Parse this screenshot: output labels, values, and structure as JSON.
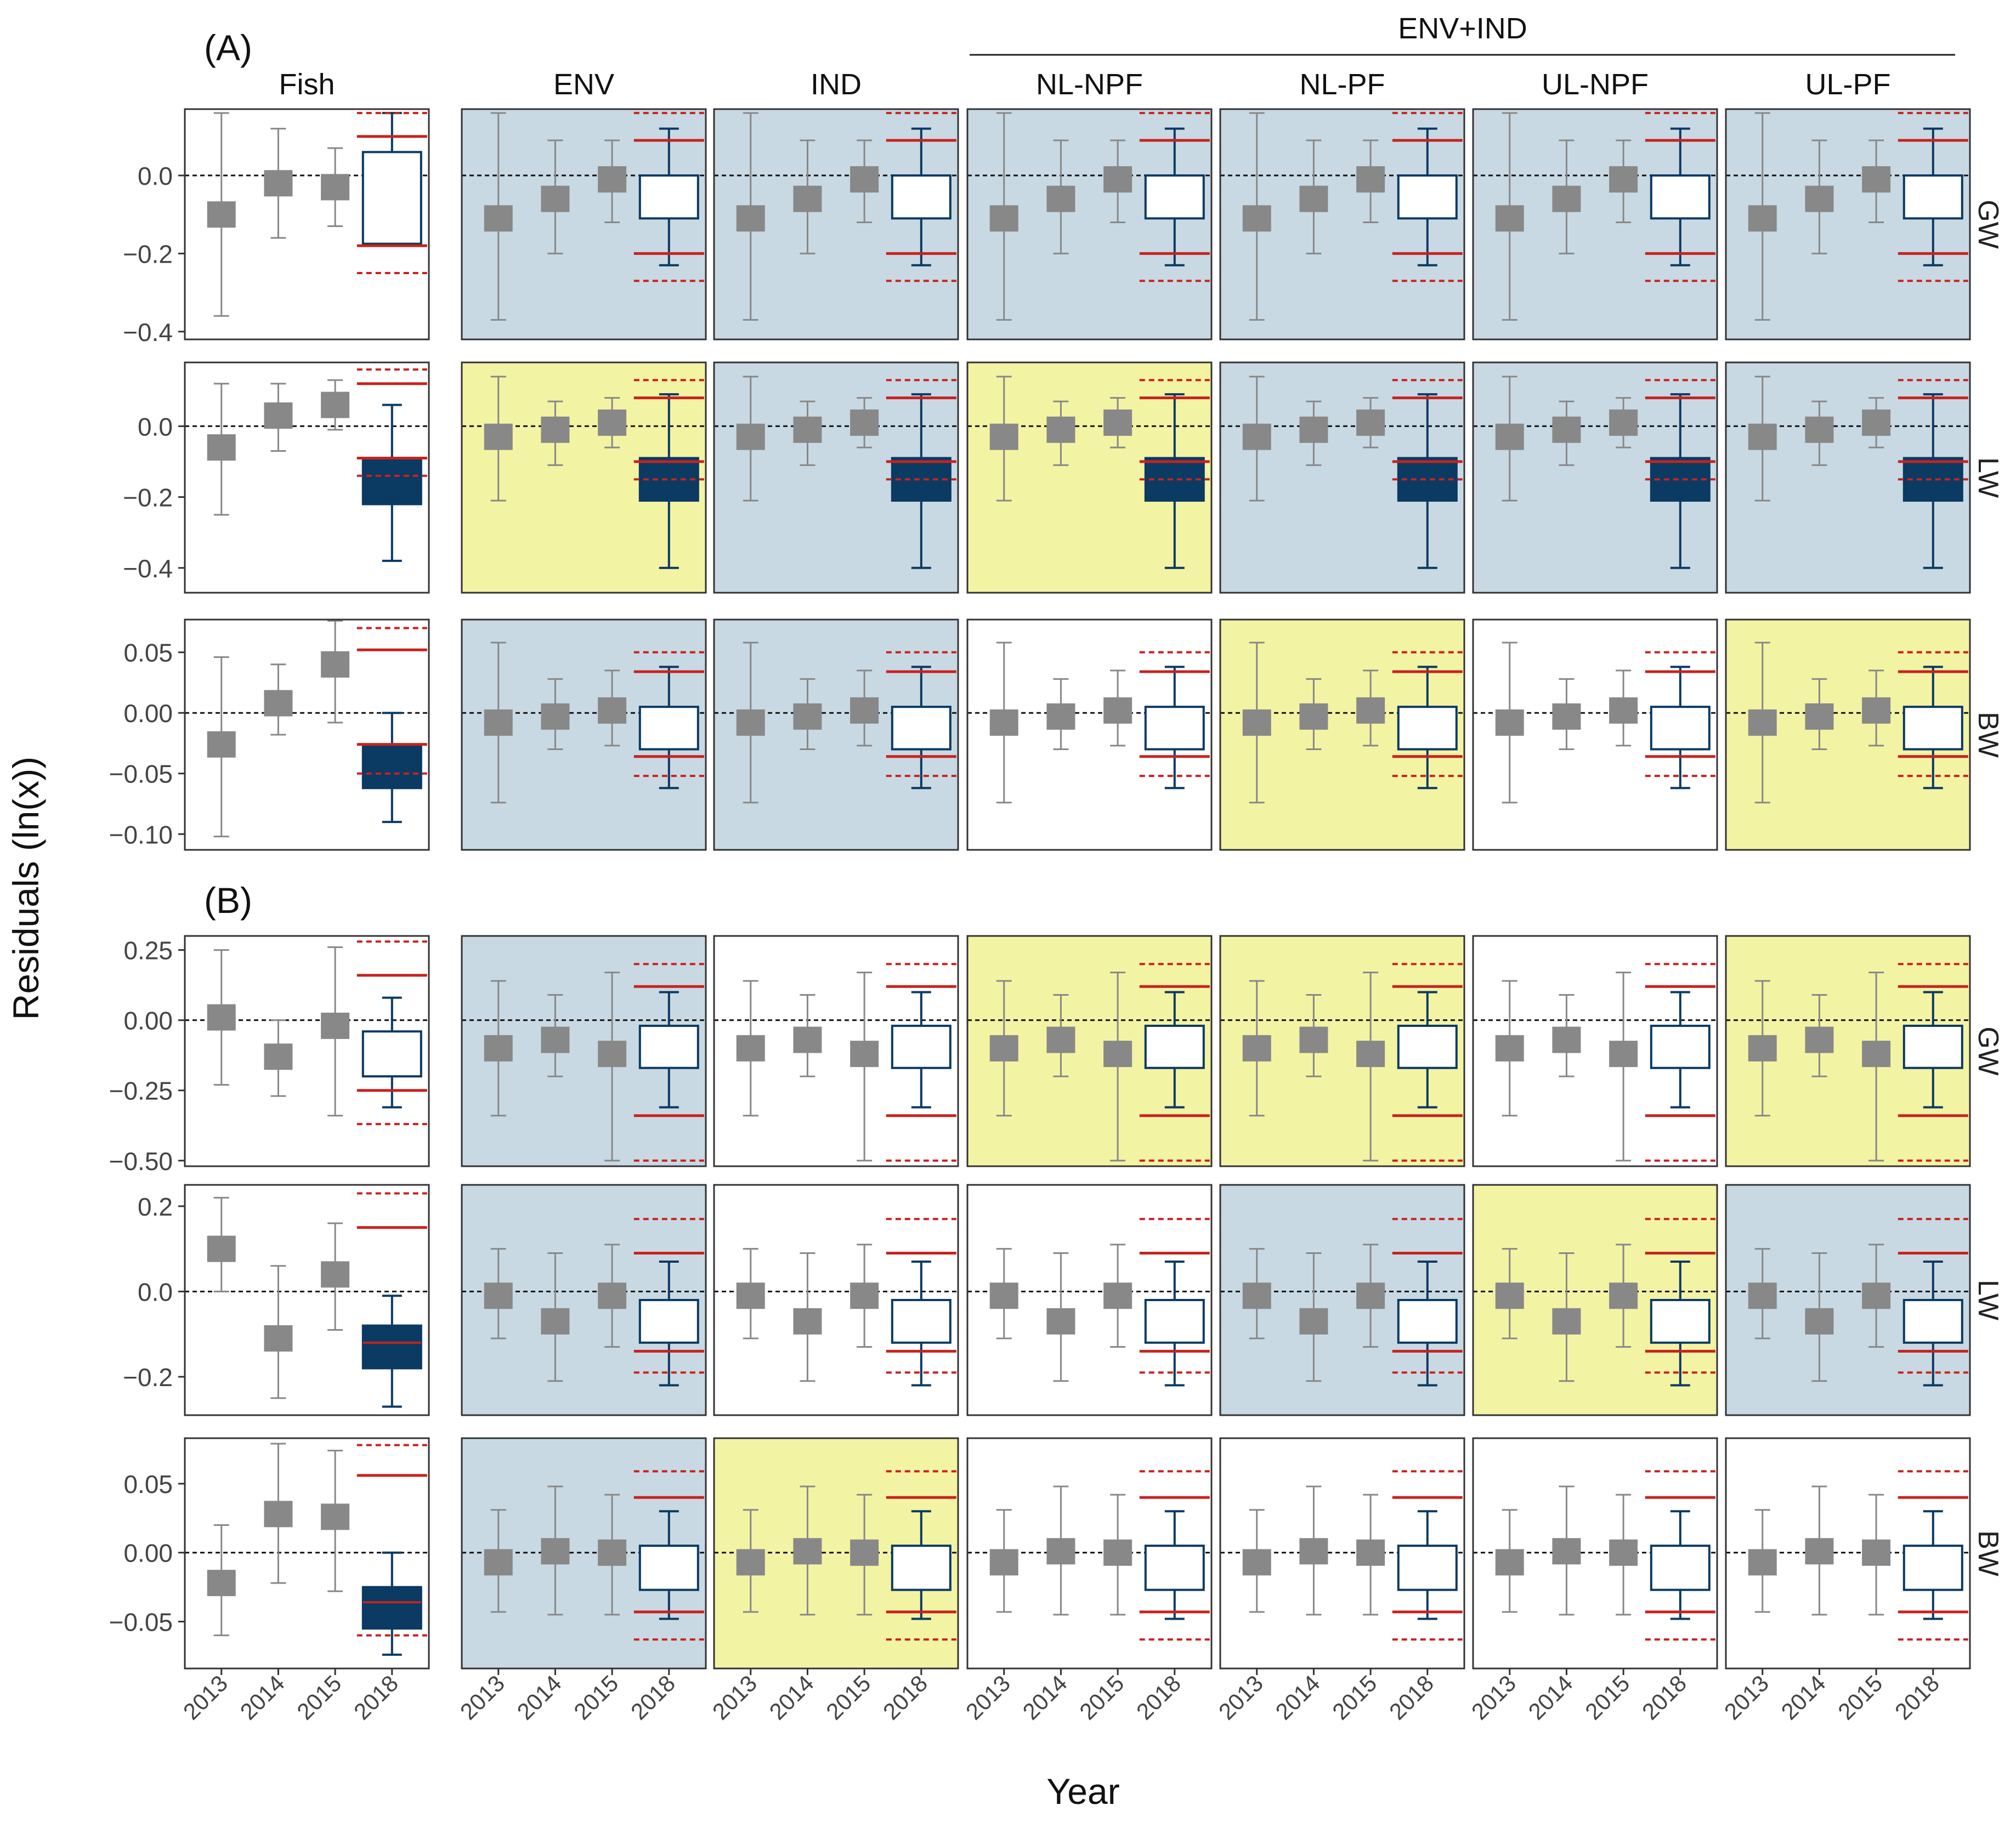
{
  "chart_data": {
    "type": "box",
    "title": "",
    "xlabel": "Year",
    "ylabel": "Residuals (ln(x))",
    "panel_labels": [
      "(A)",
      "(B)"
    ],
    "group_header": "ENV+IND",
    "columns": [
      "Fish",
      "ENV",
      "IND",
      "NL-NPF",
      "NL-PF",
      "UL-NPF",
      "UL-PF"
    ],
    "rows": [
      "GW",
      "LW",
      "BW"
    ],
    "years": [
      "2013",
      "2014",
      "2015",
      "2018"
    ],
    "colors": {
      "grey": "#888888",
      "navy": "#0b3a63",
      "red": "#c8221f",
      "bg_blue": "#c9d9e3",
      "bg_yellow": "#f3f3a4",
      "bg_white": "#ffffff"
    },
    "sections": [
      {
        "label": "(A)",
        "rows": [
          {
            "name": "GW",
            "ylim": [
              -0.42,
              0.17
            ],
            "ticks": [
              0.0,
              -0.2,
              -0.4
            ],
            "tick_labels": [
              "0.0",
              "−0.2",
              "−0.4"
            ],
            "bgs": [
              "white",
              "blue",
              "blue",
              "blue",
              "blue",
              "blue",
              "blue"
            ],
            "fish": {
              "grey": [
                [
                  -0.1,
                  -0.36,
                  0.16
                ],
                [
                  -0.02,
                  -0.16,
                  0.12
                ],
                [
                  -0.03,
                  -0.13,
                  0.07
                ]
              ],
              "box": [
                -0.175,
                0.06
              ],
              "whisker": [
                -0.175,
                0.16
              ],
              "fill": "white",
              "red_solid": [
                0.1,
                -0.18
              ],
              "red_dash": [
                0.16,
                -0.25
              ],
              "red_mid": null
            },
            "model": {
              "grey": [
                [
                  -0.11,
                  -0.37,
                  0.16
                ],
                [
                  -0.06,
                  -0.2,
                  0.09
                ],
                [
                  -0.01,
                  -0.12,
                  0.09
                ]
              ],
              "box": [
                -0.11,
                0.0
              ],
              "whisker": [
                -0.23,
                0.12
              ],
              "fill": "white",
              "red_solid": [
                0.09,
                -0.2
              ],
              "red_dash": [
                0.16,
                -0.27
              ],
              "red_mid": null
            }
          },
          {
            "name": "LW",
            "ylim": [
              -0.47,
              0.18
            ],
            "ticks": [
              0.0,
              -0.2,
              -0.4
            ],
            "tick_labels": [
              "0.0",
              "−0.2",
              "−0.4"
            ],
            "bgs": [
              "white",
              "yellow",
              "blue",
              "yellow",
              "blue",
              "blue",
              "blue"
            ],
            "fish": {
              "grey": [
                [
                  -0.06,
                  -0.25,
                  0.12
                ],
                [
                  0.03,
                  -0.07,
                  0.12
                ],
                [
                  0.06,
                  -0.01,
                  0.13
                ]
              ],
              "box": [
                -0.22,
                -0.09
              ],
              "whisker": [
                -0.38,
                0.06
              ],
              "fill": "navy",
              "red_solid": [
                0.12,
                -0.09
              ],
              "red_dash": [
                0.16,
                -0.14
              ],
              "red_mid": null
            },
            "model": {
              "grey": [
                [
                  -0.03,
                  -0.21,
                  0.14
                ],
                [
                  -0.01,
                  -0.11,
                  0.07
                ],
                [
                  0.01,
                  -0.06,
                  0.08
                ]
              ],
              "box": [
                -0.21,
                -0.09
              ],
              "whisker": [
                -0.4,
                0.09
              ],
              "fill": "navy",
              "red_solid": [
                0.08,
                -0.1
              ],
              "red_dash": [
                0.13,
                -0.15
              ],
              "red_mid": null
            }
          },
          {
            "name": "BW",
            "ylim": [
              -0.113,
              0.077
            ],
            "ticks": [
              0.05,
              0.0,
              -0.05,
              -0.1
            ],
            "tick_labels": [
              "0.05",
              "0.00",
              "−0.05",
              "−0.10"
            ],
            "bgs": [
              "white",
              "blue",
              "blue",
              "white",
              "yellow",
              "white",
              "yellow"
            ],
            "fish": {
              "grey": [
                [
                  -0.026,
                  -0.102,
                  0.046
                ],
                [
                  0.008,
                  -0.018,
                  0.04
                ],
                [
                  0.04,
                  -0.008,
                  0.076
                ]
              ],
              "box": [
                -0.062,
                -0.027
              ],
              "whisker": [
                -0.09,
                0.0
              ],
              "fill": "navy",
              "red_solid": [
                0.052,
                -0.026
              ],
              "red_dash": [
                0.07,
                -0.05
              ],
              "red_mid": null
            },
            "model": {
              "grey": [
                [
                  -0.008,
                  -0.074,
                  0.058
                ],
                [
                  -0.003,
                  -0.03,
                  0.028
                ],
                [
                  0.002,
                  -0.027,
                  0.035
                ]
              ],
              "box": [
                -0.03,
                0.005
              ],
              "whisker": [
                -0.062,
                0.038
              ],
              "fill": "white",
              "red_solid": [
                0.034,
                -0.036
              ],
              "red_dash": [
                0.05,
                -0.052
              ],
              "red_mid": null
            }
          }
        ]
      },
      {
        "label": "(B)",
        "rows": [
          {
            "name": "GW",
            "ylim": [
              -0.52,
              0.3
            ],
            "ticks": [
              0.25,
              0.0,
              -0.25,
              -0.5
            ],
            "tick_labels": [
              "0.25",
              "0.00",
              "−0.25",
              "−0.50"
            ],
            "bgs": [
              "white",
              "blue",
              "white",
              "yellow",
              "yellow",
              "white",
              "yellow"
            ],
            "fish": {
              "grey": [
                [
                  0.01,
                  -0.23,
                  0.25
                ],
                [
                  -0.13,
                  -0.27,
                  0.0
                ],
                [
                  -0.02,
                  -0.34,
                  0.26
                ]
              ],
              "box": [
                -0.2,
                -0.04
              ],
              "whisker": [
                -0.31,
                0.08
              ],
              "fill": "white",
              "red_solid": [
                0.16,
                -0.25
              ],
              "red_dash": [
                0.28,
                -0.37
              ],
              "red_mid": null
            },
            "model": {
              "grey": [
                [
                  -0.1,
                  -0.34,
                  0.14
                ],
                [
                  -0.07,
                  -0.2,
                  0.09
                ],
                [
                  -0.12,
                  -0.5,
                  0.17
                ]
              ],
              "box": [
                -0.17,
                -0.02
              ],
              "whisker": [
                -0.31,
                0.1
              ],
              "fill": "white",
              "red_solid": [
                0.12,
                -0.34
              ],
              "red_dash": [
                0.2,
                -0.5
              ],
              "red_mid": null
            }
          },
          {
            "name": "LW",
            "ylim": [
              -0.29,
              0.25
            ],
            "ticks": [
              0.2,
              0.0,
              -0.2
            ],
            "tick_labels": [
              "0.2",
              "0.0",
              "−0.2"
            ],
            "bgs": [
              "white",
              "blue",
              "white",
              "white",
              "blue",
              "yellow",
              "blue"
            ],
            "fish": {
              "grey": [
                [
                  0.1,
                  0.0,
                  0.22
                ],
                [
                  -0.11,
                  -0.25,
                  0.06
                ],
                [
                  0.04,
                  -0.09,
                  0.16
                ]
              ],
              "box": [
                -0.18,
                -0.08
              ],
              "whisker": [
                -0.27,
                -0.01
              ],
              "fill": "navy",
              "red_solid": [
                0.15,
                null
              ],
              "red_dash": [
                0.23,
                null
              ],
              "red_mid": -0.12
            },
            "model": {
              "grey": [
                [
                  -0.01,
                  -0.11,
                  0.1
                ],
                [
                  -0.07,
                  -0.21,
                  0.09
                ],
                [
                  -0.01,
                  -0.13,
                  0.11
                ]
              ],
              "box": [
                -0.12,
                -0.02
              ],
              "whisker": [
                -0.22,
                0.07
              ],
              "fill": "white",
              "red_solid": [
                0.09,
                -0.14
              ],
              "red_dash": [
                0.17,
                -0.19
              ],
              "red_mid": null
            }
          },
          {
            "name": "BW",
            "ylim": [
              -0.084,
              0.083
            ],
            "ticks": [
              0.05,
              0.0,
              -0.05
            ],
            "tick_labels": [
              "0.05",
              "0.00",
              "−0.05"
            ],
            "bgs": [
              "white",
              "blue",
              "yellow",
              "white",
              "white",
              "white",
              "white"
            ],
            "fish": {
              "grey": [
                [
                  -0.022,
                  -0.06,
                  0.02
                ],
                [
                  0.028,
                  -0.022,
                  0.079
                ],
                [
                  0.026,
                  -0.028,
                  0.074
                ]
              ],
              "box": [
                -0.055,
                -0.025
              ],
              "whisker": [
                -0.074,
                0.0
              ],
              "fill": "navy",
              "red_solid": [
                0.056,
                null
              ],
              "red_dash": [
                0.078,
                -0.06
              ],
              "red_mid": -0.036
            },
            "model": {
              "grey": [
                [
                  -0.007,
                  -0.043,
                  0.031
                ],
                [
                  0.001,
                  -0.045,
                  0.048
                ],
                [
                  0.0,
                  -0.045,
                  0.042
                ]
              ],
              "box": [
                -0.027,
                0.005
              ],
              "whisker": [
                -0.048,
                0.03
              ],
              "fill": "white",
              "red_solid": [
                0.04,
                -0.043
              ],
              "red_dash": [
                0.059,
                -0.063
              ],
              "red_mid": null
            }
          }
        ]
      }
    ]
  }
}
